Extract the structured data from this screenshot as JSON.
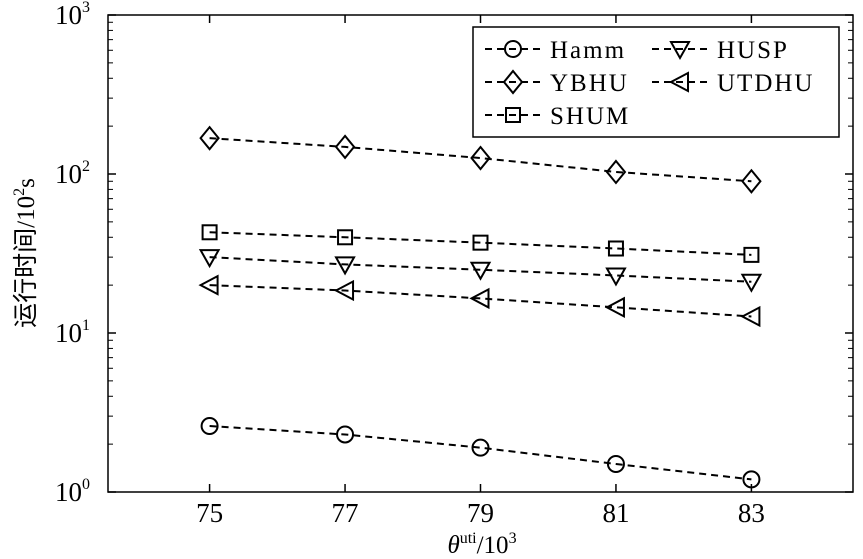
{
  "chart_data": {
    "type": "line",
    "y_scale": "log",
    "xlabel": "θuti/10³",
    "xlabel_parts": {
      "symbol": "θ",
      "sup": "uti",
      "rest": "/10",
      "rest_sup": "3"
    },
    "ylabel": "运行时间/10²s",
    "ylabel_parts": {
      "text": "运行时间/10",
      "sup": "2",
      "unit": "s"
    },
    "x": [
      75,
      77,
      79,
      81,
      83
    ],
    "xlim": [
      73.5,
      84.5
    ],
    "ylim": [
      1,
      1000
    ],
    "xticks": [
      "75",
      "77",
      "79",
      "81",
      "83"
    ],
    "yticks": [
      {
        "value": 1,
        "base": "10",
        "exp": "0"
      },
      {
        "value": 10,
        "base": "10",
        "exp": "1"
      },
      {
        "value": 100,
        "base": "10",
        "exp": "2"
      },
      {
        "value": 1000,
        "base": "10",
        "exp": "3"
      }
    ],
    "grid": false,
    "legend_position": "top-right",
    "series": [
      {
        "name": "Hamm",
        "marker": "circle",
        "values": [
          2.6,
          2.3,
          1.9,
          1.5,
          1.2
        ]
      },
      {
        "name": "YBHU",
        "marker": "diamond",
        "values": [
          168,
          148,
          126,
          103,
          90
        ]
      },
      {
        "name": "SHUM",
        "marker": "square",
        "values": [
          43,
          40,
          37,
          34,
          31
        ]
      },
      {
        "name": "HUSP",
        "marker": "triangle-down",
        "values": [
          30,
          27,
          25,
          23,
          21
        ]
      },
      {
        "name": "UTDHU",
        "marker": "triangle-left",
        "values": [
          20,
          18.5,
          16.5,
          14.5,
          12.7
        ]
      }
    ]
  }
}
